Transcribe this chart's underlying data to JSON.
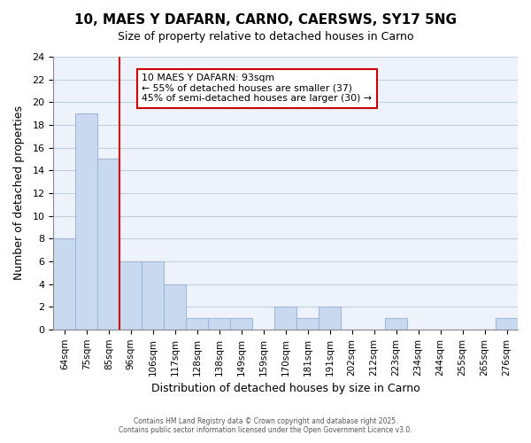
{
  "title": "10, MAES Y DAFARN, CARNO, CAERSWS, SY17 5NG",
  "subtitle": "Size of property relative to detached houses in Carno",
  "xlabel": "Distribution of detached houses by size in Carno",
  "ylabel": "Number of detached properties",
  "bar_color": "#c9d9f0",
  "bar_edge_color": "#a0b8d8",
  "background_color": "#ffffff",
  "grid_color": "#c0cfe0",
  "categories": [
    "64sqm",
    "75sqm",
    "85sqm",
    "96sqm",
    "106sqm",
    "117sqm",
    "128sqm",
    "138sqm",
    "149sqm",
    "159sqm",
    "170sqm",
    "181sqm",
    "191sqm",
    "202sqm",
    "212sqm",
    "223sqm",
    "234sqm",
    "244sqm",
    "255sqm",
    "265sqm",
    "276sqm"
  ],
  "values": [
    8,
    19,
    15,
    6,
    6,
    4,
    1,
    1,
    1,
    0,
    2,
    1,
    2,
    0,
    0,
    1,
    0,
    0,
    0,
    0,
    1
  ],
  "ylim": [
    0,
    24
  ],
  "yticks": [
    0,
    2,
    4,
    6,
    8,
    10,
    12,
    14,
    16,
    18,
    20,
    22,
    24
  ],
  "vline_x": 3,
  "vline_color": "#cc0000",
  "annotation_title": "10 MAES Y DAFARN: 93sqm",
  "annotation_line1": "← 55% of detached houses are smaller (37)",
  "annotation_line2": "45% of semi-detached houses are larger (30) →",
  "annotation_box_color": "#ffffff",
  "annotation_box_edge": "#cc0000",
  "footer_line1": "Contains HM Land Registry data © Crown copyright and database right 2025.",
  "footer_line2": "Contains public sector information licensed under the Open Government Licence v3.0."
}
